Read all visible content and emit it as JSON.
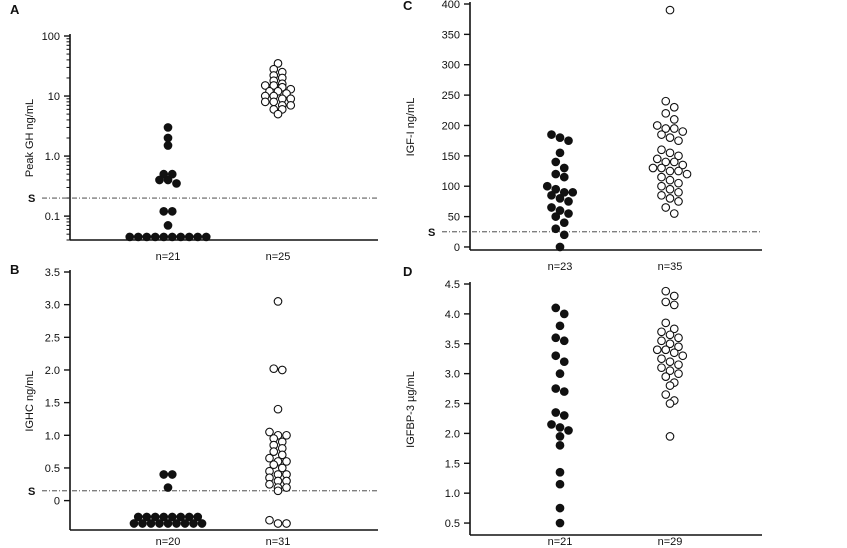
{
  "chart_data": [
    {
      "type": "scatter",
      "panel": "A",
      "ylabel": "Peak GH ng/mL",
      "yscale": "log",
      "ylim": [
        0.04,
        100
      ],
      "yticks": [
        0.1,
        1.0,
        10,
        100
      ],
      "ytick_labels": [
        "0.1",
        "1.0",
        "10",
        "100"
      ],
      "threshold_label": "S",
      "threshold_value": 0.2,
      "groups": [
        {
          "label": "n=21",
          "marker": "filled",
          "values": [
            0.045,
            0.045,
            0.045,
            0.045,
            0.045,
            0.045,
            0.045,
            0.045,
            0.045,
            0.045,
            0.07,
            0.12,
            0.12,
            0.35,
            0.4,
            0.4,
            0.5,
            0.5,
            1.5,
            2.0,
            3.0
          ]
        },
        {
          "label": "n=25",
          "marker": "open",
          "values": [
            5,
            6,
            6,
            7,
            7,
            8,
            8,
            9,
            9,
            10,
            10,
            11,
            12,
            12,
            13,
            14,
            15,
            15,
            16,
            18,
            20,
            22,
            25,
            28,
            35
          ]
        }
      ]
    },
    {
      "type": "scatter",
      "panel": "B",
      "ylabel": "IGHC ng/mL",
      "ylim": [
        -0.45,
        3.5
      ],
      "yticks": [
        0,
        0.5,
        1.0,
        1.5,
        2.0,
        2.5,
        3.0,
        3.5
      ],
      "ytick_labels": [
        "0",
        "0.5",
        "1.0",
        "1.5",
        "2.0",
        "2.5",
        "3.0",
        "3.5"
      ],
      "threshold_label": "S",
      "threshold_value": 0.15,
      "groups": [
        {
          "label": "n=20",
          "marker": "filled",
          "values": [
            -0.25,
            -0.25,
            -0.25,
            -0.25,
            -0.25,
            -0.25,
            -0.25,
            -0.25,
            -0.35,
            -0.35,
            -0.35,
            -0.35,
            -0.35,
            -0.35,
            -0.35,
            -0.35,
            -0.35,
            0.2,
            0.4,
            0.4
          ]
        },
        {
          "label": "n=31",
          "marker": "open",
          "values": [
            -0.35,
            -0.35,
            -0.3,
            0.15,
            0.2,
            0.2,
            0.25,
            0.3,
            0.3,
            0.35,
            0.4,
            0.4,
            0.45,
            0.5,
            0.55,
            0.6,
            0.65,
            0.7,
            0.75,
            0.8,
            0.85,
            0.9,
            0.95,
            1.0,
            1.0,
            1.05,
            1.4,
            2.0,
            2.02,
            3.05,
            0.6
          ]
        }
      ]
    },
    {
      "type": "scatter",
      "panel": "C",
      "ylabel": "IGF-I ng/mL",
      "ylim": [
        -5,
        400
      ],
      "yticks": [
        0,
        50,
        100,
        150,
        200,
        250,
        300,
        350,
        400
      ],
      "ytick_labels": [
        "0",
        "50",
        "100",
        "150",
        "200",
        "250",
        "300",
        "350",
        "400"
      ],
      "threshold_label": "S",
      "threshold_value": 25,
      "groups": [
        {
          "label": "n=23",
          "marker": "filled",
          "values": [
            0,
            20,
            30,
            40,
            50,
            55,
            60,
            65,
            75,
            80,
            85,
            90,
            90,
            95,
            100,
            115,
            120,
            130,
            140,
            155,
            175,
            180,
            185
          ]
        },
        {
          "label": "n=35",
          "marker": "open",
          "values": [
            55,
            65,
            75,
            80,
            85,
            90,
            95,
            100,
            105,
            110,
            115,
            120,
            125,
            125,
            130,
            130,
            135,
            140,
            140,
            145,
            150,
            155,
            160,
            175,
            180,
            185,
            190,
            195,
            195,
            200,
            210,
            220,
            230,
            240,
            390
          ]
        }
      ]
    },
    {
      "type": "scatter",
      "panel": "D",
      "ylabel": "IGFBP-3 µg/mL",
      "ylim": [
        0.3,
        4.5
      ],
      "yticks": [
        0.5,
        1.0,
        1.5,
        2.0,
        2.5,
        3.0,
        3.5,
        4.0,
        4.5
      ],
      "ytick_labels": [
        "0.5",
        "1.0",
        "1.5",
        "2.0",
        "2.5",
        "3.0",
        "3.5",
        "4.0",
        "4.5"
      ],
      "groups": [
        {
          "label": "n=21",
          "marker": "filled",
          "values": [
            0.5,
            0.75,
            1.15,
            1.35,
            1.8,
            1.95,
            2.05,
            2.1,
            2.15,
            2.3,
            2.35,
            2.7,
            2.75,
            3.0,
            3.2,
            3.3,
            3.55,
            3.6,
            3.8,
            4.0,
            4.1
          ]
        },
        {
          "label": "n=29",
          "marker": "open",
          "values": [
            1.95,
            2.5,
            2.55,
            2.65,
            2.8,
            2.85,
            2.95,
            3.0,
            3.05,
            3.1,
            3.15,
            3.2,
            3.25,
            3.3,
            3.35,
            3.4,
            3.4,
            3.45,
            3.5,
            3.55,
            3.6,
            3.65,
            3.7,
            3.75,
            3.85,
            4.15,
            4.2,
            4.3,
            4.38
          ]
        }
      ]
    }
  ]
}
